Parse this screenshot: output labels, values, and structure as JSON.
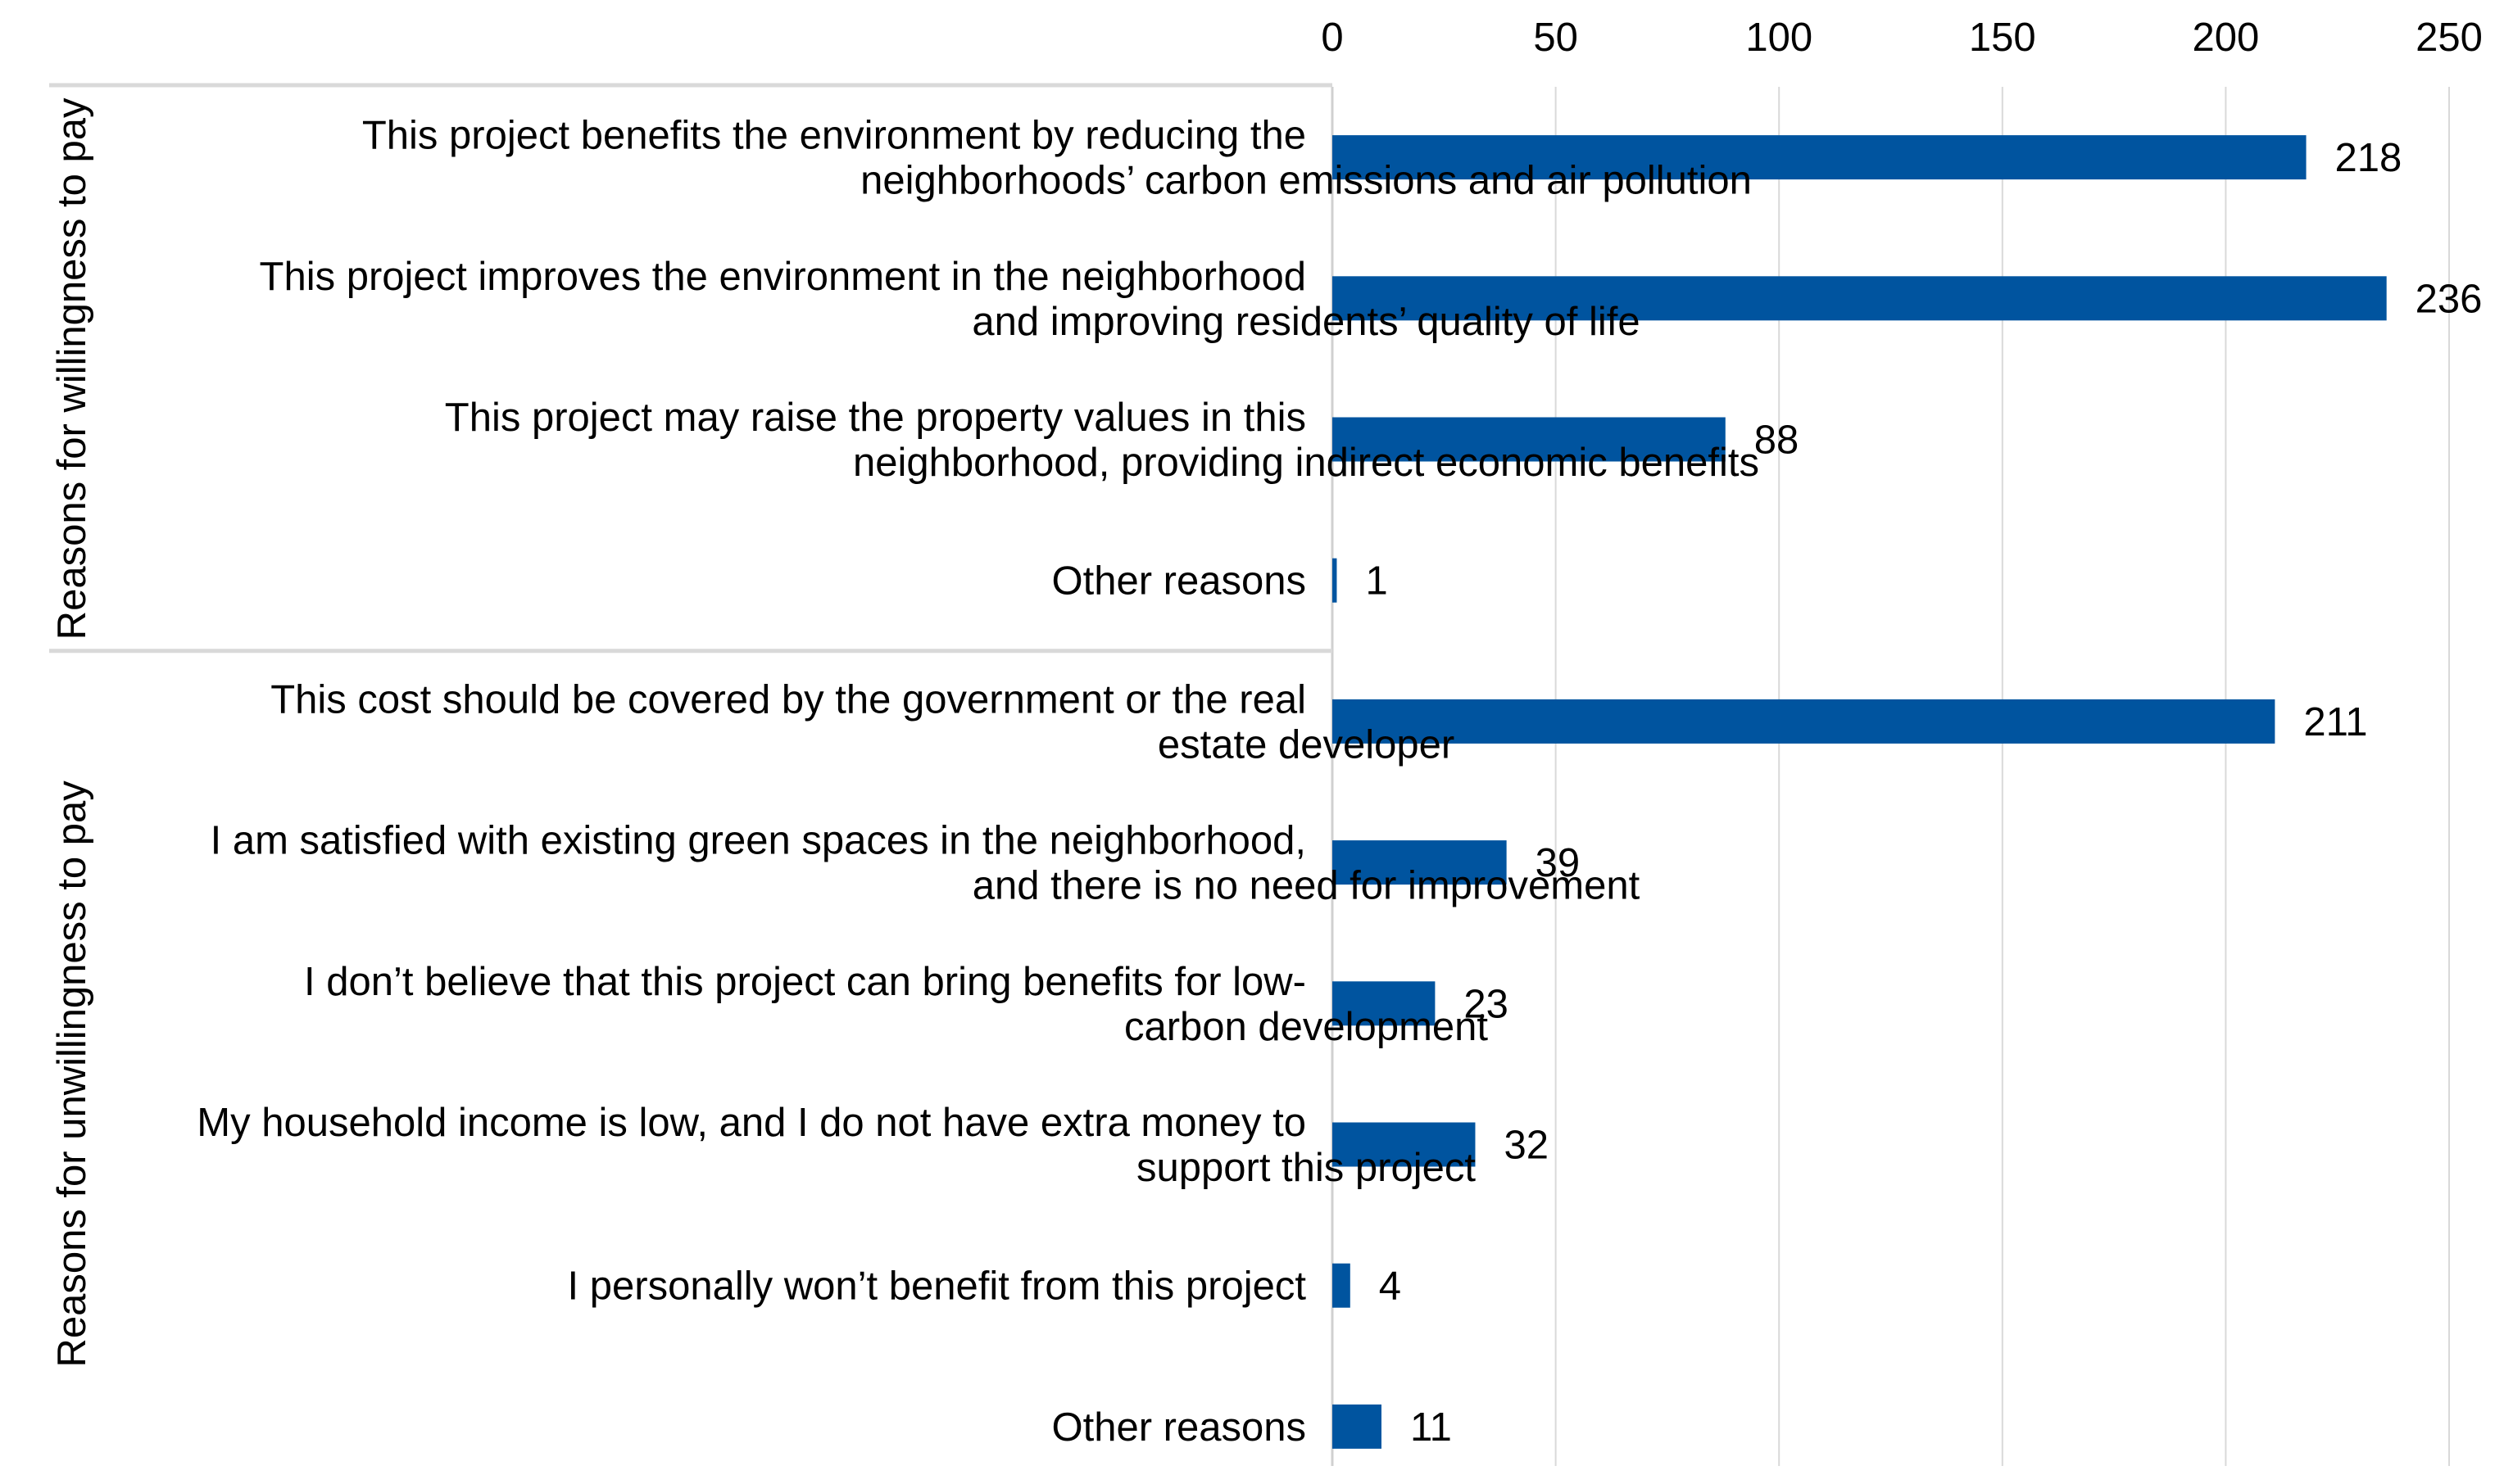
{
  "chart_data": {
    "type": "bar",
    "orientation": "horizontal",
    "title": "",
    "xlabel": "",
    "ylabel": "",
    "xlim": [
      0,
      250
    ],
    "x_ticks": [
      0,
      50,
      100,
      150,
      200,
      250
    ],
    "x_axis_position": "top",
    "grid": true,
    "legend": "none",
    "bar_color": "#00549F",
    "groups": [
      {
        "label": "Reasons for willingness to pay",
        "items": [
          {
            "category": [
              "This project benefits the environment by reducing the",
              "neighborhoods’ carbon emissions and air pollution"
            ],
            "value": 218
          },
          {
            "category": [
              "This project improves the environment in the neighborhood",
              "and improving residents’ quality of life"
            ],
            "value": 236
          },
          {
            "category": [
              "This project may raise the property values in this",
              "neighborhood, providing indirect economic benefits"
            ],
            "value": 88
          },
          {
            "category": [
              "Other reasons"
            ],
            "value": 1
          }
        ]
      },
      {
        "label": "Reasons for unwillingness to pay",
        "items": [
          {
            "category": [
              "This cost should be covered by the government or the real",
              "estate developer"
            ],
            "value": 211
          },
          {
            "category": [
              "I am satisfied with existing green spaces in the neighborhood,",
              "and there is no need for improvement"
            ],
            "value": 39
          },
          {
            "category": [
              "I don’t believe that this project can bring benefits for low-",
              "carbon development"
            ],
            "value": 23
          },
          {
            "category": [
              "My household income is low, and I do not have extra money to",
              "support this project"
            ],
            "value": 32
          },
          {
            "category": [
              "I personally won’t benefit from this project"
            ],
            "value": 4
          },
          {
            "category": [
              "Other reasons"
            ],
            "value": 11
          }
        ]
      }
    ]
  }
}
